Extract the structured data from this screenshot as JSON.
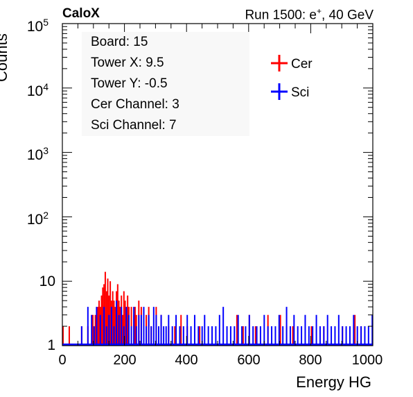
{
  "header": {
    "left_label": "CaloX",
    "right_label": "Run 1500: e",
    "right_sup": "+",
    "right_suffix": ", 40 GeV"
  },
  "info_box": {
    "lines": [
      "Board: 15",
      "Tower X: 9.5",
      "Tower Y: -0.5",
      "Cer Channel: 3",
      "Sci Channel: 7"
    ]
  },
  "legend": {
    "items": [
      {
        "name": "Cer",
        "color": "#ff0000"
      },
      {
        "name": "Sci",
        "color": "#0000ff"
      }
    ]
  },
  "axes": {
    "xlabel": "Energy HG",
    "ylabel": "Counts",
    "xticks": [
      "0",
      "200",
      "400",
      "600",
      "800",
      "1000"
    ],
    "yticks": [
      {
        "base": "1",
        "exp": ""
      },
      {
        "base": "10",
        "exp": ""
      },
      {
        "base": "10",
        "exp": "2"
      },
      {
        "base": "10",
        "exp": "3"
      },
      {
        "base": "10",
        "exp": "4"
      },
      {
        "base": "10",
        "exp": "5"
      }
    ]
  },
  "chart_data": {
    "type": "bar",
    "title": "",
    "xlabel": "Energy HG",
    "ylabel": "Counts",
    "xlim": [
      0,
      1000
    ],
    "ylim": [
      1,
      100000
    ],
    "yscale": "log",
    "bin_width": 4,
    "series": [
      {
        "name": "Cer",
        "color": "#ff0000",
        "x": [
          0,
          20,
          60,
          80,
          96,
          104,
          108,
          112,
          116,
          120,
          124,
          128,
          132,
          136,
          140,
          144,
          148,
          152,
          156,
          160,
          164,
          168,
          172,
          176,
          180,
          184,
          188,
          192,
          196,
          200,
          204,
          208,
          212,
          220,
          228,
          232,
          236,
          244,
          252,
          260,
          268,
          276,
          284,
          300,
          316,
          340,
          360,
          380,
          400,
          440,
          560,
          580,
          600,
          620,
          660,
          700,
          720,
          740,
          800,
          840,
          900,
          940,
          960
        ],
        "y": [
          2,
          2,
          2,
          2,
          3,
          3,
          3,
          4,
          5,
          4,
          6,
          8,
          9,
          14,
          7,
          11,
          6,
          10,
          5,
          7,
          5,
          4,
          7,
          9,
          5,
          4,
          6,
          3,
          7,
          5,
          3,
          6,
          4,
          4,
          3,
          4,
          3,
          5,
          4,
          2,
          3,
          4,
          2,
          4,
          3,
          2,
          2,
          3,
          2,
          2,
          3,
          2,
          3,
          2,
          3,
          3,
          2,
          2,
          2,
          2,
          2,
          3,
          2
        ]
      },
      {
        "name": "Sci",
        "color": "#0000ff",
        "x": [
          60,
          80,
          92,
          100,
          108,
          120,
          132,
          140,
          148,
          156,
          164,
          172,
          180,
          188,
          196,
          204,
          212,
          220,
          228,
          236,
          244,
          252,
          260,
          268,
          276,
          284,
          292,
          300,
          308,
          316,
          324,
          332,
          340,
          352,
          364,
          376,
          388,
          400,
          412,
          424,
          436,
          448,
          456,
          468,
          480,
          492,
          504,
          516,
          528,
          540,
          552,
          564,
          576,
          588,
          600,
          612,
          624,
          636,
          648,
          660,
          672,
          684,
          696,
          708,
          720,
          732,
          744,
          756,
          768,
          780,
          792,
          804,
          816,
          828,
          840,
          852,
          864,
          876,
          888,
          900,
          912,
          924,
          936,
          948,
          960,
          972,
          984,
          996
        ],
        "y": [
          2,
          4,
          3,
          2,
          4,
          3,
          4,
          2,
          3,
          4,
          2,
          5,
          3,
          4,
          2,
          4,
          3,
          2,
          4,
          2,
          3,
          3,
          4,
          2,
          3,
          2,
          4,
          3,
          2,
          3,
          2,
          2,
          3,
          2,
          3,
          2,
          2,
          3,
          2,
          3,
          2,
          2,
          3,
          2,
          2,
          2,
          3,
          4,
          2,
          2,
          2,
          3,
          2,
          2,
          3,
          2,
          2,
          2,
          3,
          2,
          2,
          2,
          3,
          2,
          4,
          2,
          3,
          2,
          2,
          3,
          2,
          2,
          3,
          2,
          2,
          3,
          2,
          2,
          3,
          2,
          2,
          2,
          3,
          2,
          2,
          2,
          2,
          3
        ]
      }
    ]
  }
}
